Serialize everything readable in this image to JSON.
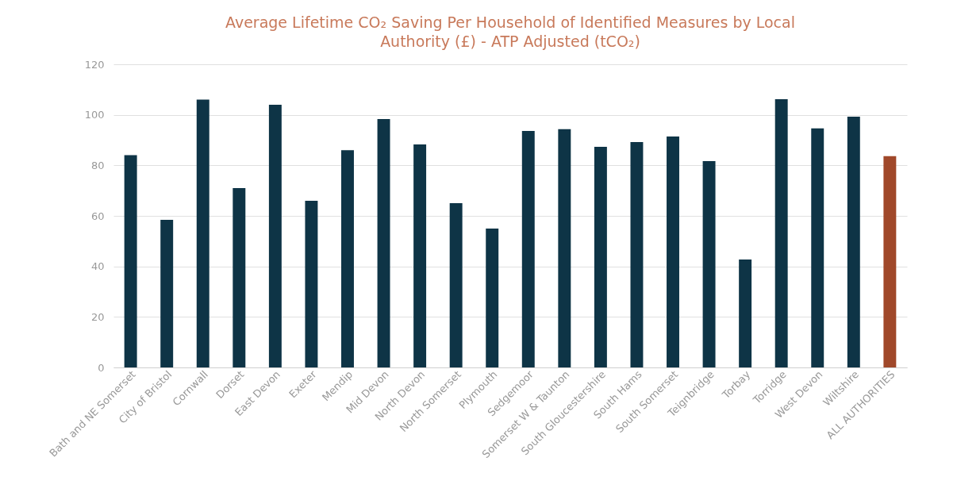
{
  "chart_data": {
    "type": "bar",
    "title": "Average Lifetime CO₂ Saving Per Household of Identified Measures by Local Authority (£) - ATP Adjusted (tCO₂)",
    "categories": [
      "Bath and NE Somerset",
      "City of Bristol",
      "Cornwall",
      "Dorset",
      "East Devon",
      "Exeter",
      "Mendip",
      "Mid Devon",
      "North Devon",
      "North Somerset",
      "Plymouth",
      "Sedgemoor",
      "Somerset W & Taunton",
      "South Gloucestershire",
      "South Hams",
      "South Somerset",
      "Teignbridge",
      "Torbay",
      "Torridge",
      "West Devon",
      "Wiltshire",
      "ALL AUTHORITIES"
    ],
    "values": [
      84,
      58.4,
      106,
      71,
      104,
      66,
      86,
      98.3,
      88.3,
      65,
      55,
      93.6,
      94.3,
      87.3,
      89.2,
      91.4,
      81.7,
      42.7,
      106.2,
      94.6,
      99.3,
      83.6
    ],
    "colors": [
      "#0e3446",
      "#0e3446",
      "#0e3446",
      "#0e3446",
      "#0e3446",
      "#0e3446",
      "#0e3446",
      "#0e3446",
      "#0e3446",
      "#0e3446",
      "#0e3446",
      "#0e3446",
      "#0e3446",
      "#0e3446",
      "#0e3446",
      "#0e3446",
      "#0e3446",
      "#0e3446",
      "#0e3446",
      "#0e3446",
      "#0e3446",
      "#a0482a"
    ],
    "ylim": [
      0,
      120
    ],
    "yticks": [
      0,
      20,
      40,
      60,
      80,
      100,
      120
    ],
    "grid": "y"
  }
}
